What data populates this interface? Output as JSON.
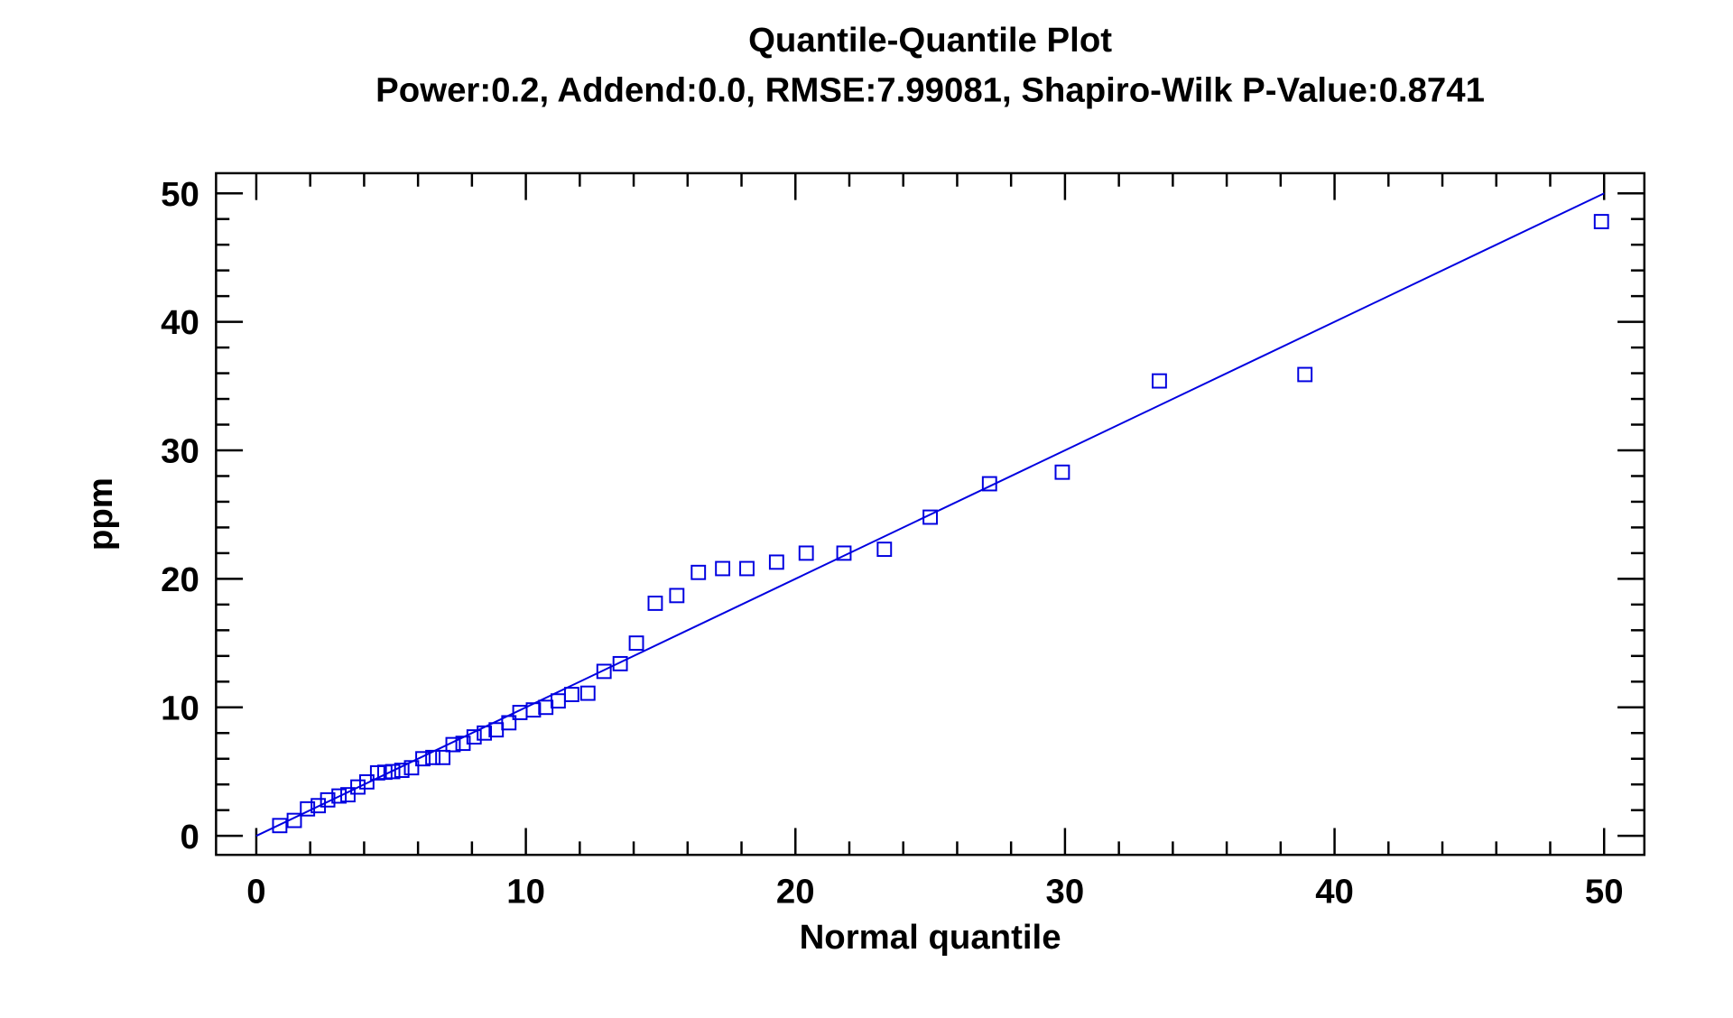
{
  "chart_data": {
    "type": "scatter",
    "title": "Quantile-Quantile Plot",
    "subtitle": "Power:0.2, Addend:0.0, RMSE:7.99081, Shapiro-Wilk P-Value:0.8741",
    "xlabel": "Normal quantile",
    "ylabel": "ppm",
    "xlim": [
      -1.5,
      51.5
    ],
    "ylim": [
      -1.5,
      51.5
    ],
    "xticks": [
      "0",
      "10",
      "20",
      "30",
      "40",
      "50"
    ],
    "yticks": [
      "0",
      "10",
      "20",
      "30",
      "40",
      "50"
    ],
    "grid": false,
    "marker": "open-square",
    "color": "#0000e0",
    "reference_line": {
      "from": [
        0,
        0
      ],
      "to": [
        50,
        50
      ]
    },
    "points": [
      [
        0.87,
        0.8
      ],
      [
        1.41,
        1.2
      ],
      [
        1.9,
        2.1
      ],
      [
        2.3,
        2.35
      ],
      [
        2.65,
        2.8
      ],
      [
        3.07,
        3.1
      ],
      [
        3.4,
        3.2
      ],
      [
        3.77,
        3.8
      ],
      [
        4.1,
        4.2
      ],
      [
        4.5,
        4.9
      ],
      [
        4.77,
        4.95
      ],
      [
        5.06,
        5.0
      ],
      [
        5.4,
        5.1
      ],
      [
        5.76,
        5.3
      ],
      [
        6.18,
        6.0
      ],
      [
        6.55,
        6.1
      ],
      [
        6.92,
        6.1
      ],
      [
        7.3,
        7.1
      ],
      [
        7.67,
        7.2
      ],
      [
        8.08,
        7.7
      ],
      [
        8.46,
        8.0
      ],
      [
        8.9,
        8.25
      ],
      [
        9.37,
        8.8
      ],
      [
        9.78,
        9.6
      ],
      [
        10.28,
        9.8
      ],
      [
        10.74,
        10.0
      ],
      [
        11.2,
        10.5
      ],
      [
        11.7,
        11.0
      ],
      [
        12.3,
        11.1
      ],
      [
        12.9,
        12.8
      ],
      [
        13.5,
        13.4
      ],
      [
        14.1,
        15.0
      ],
      [
        14.8,
        18.1
      ],
      [
        15.6,
        18.7
      ],
      [
        16.4,
        20.5
      ],
      [
        17.3,
        20.8
      ],
      [
        18.2,
        20.8
      ],
      [
        19.3,
        21.3
      ],
      [
        20.4,
        22.0
      ],
      [
        21.8,
        22.0
      ],
      [
        23.3,
        22.3
      ],
      [
        25.0,
        24.8
      ],
      [
        27.2,
        27.4
      ],
      [
        29.9,
        28.3
      ],
      [
        33.5,
        35.4
      ],
      [
        38.9,
        35.9
      ],
      [
        49.9,
        47.8
      ]
    ]
  }
}
